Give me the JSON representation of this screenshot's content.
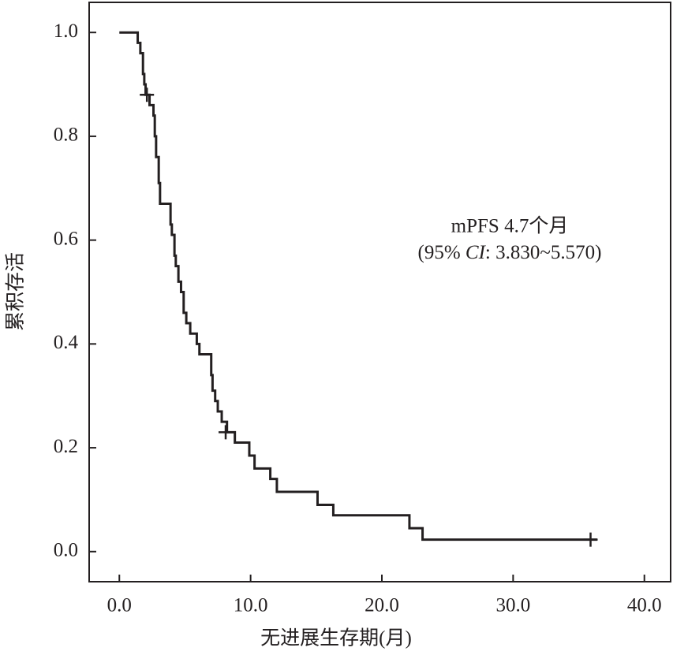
{
  "chart_data": {
    "type": "step",
    "xlabel": "无进展生存期(月)",
    "ylabel": "累积存活",
    "annotation": [
      "mPFS 4.7个月",
      [
        "(95% ",
        "CI",
        ": 3.830~5.570)"
      ]
    ],
    "xlim": [
      -2.3,
      42.0
    ],
    "ylim": [
      -0.058,
      1.058
    ],
    "xticks": [
      {
        "value": 0,
        "label": "0.0"
      },
      {
        "value": 10,
        "label": "10.0"
      },
      {
        "value": 20,
        "label": "20.0"
      },
      {
        "value": 30,
        "label": "30.0"
      },
      {
        "value": 40,
        "label": "40.0"
      }
    ],
    "yticks": [
      {
        "value": 0,
        "label": "0.0"
      },
      0.2,
      0.4,
      0.6,
      0.8,
      {
        "value": 1,
        "label": "1.0"
      }
    ],
    "color": "#231f20",
    "series": [
      {
        "x": [
          0,
          1.4,
          1.6,
          1.8,
          1.9,
          2.0,
          2.3,
          2.6,
          2.7,
          2.8,
          3.0,
          3.1,
          3.9,
          4.0,
          4.2,
          4.3,
          4.5,
          4.7,
          4.9,
          5.1,
          5.4,
          5.9,
          6.1,
          7.0,
          7.1,
          7.3,
          7.5,
          7.8,
          8.2,
          8.8,
          9.9,
          10.3,
          11.5,
          12.0,
          15.1,
          16.3,
          22.1,
          23.1,
          36.4
        ],
        "values": [
          1.0,
          0.98,
          0.96,
          0.92,
          0.9,
          0.88,
          0.86,
          0.84,
          0.8,
          0.76,
          0.71,
          0.67,
          0.63,
          0.61,
          0.57,
          0.55,
          0.52,
          0.5,
          0.46,
          0.44,
          0.42,
          0.4,
          0.38,
          0.34,
          0.31,
          0.29,
          0.27,
          0.25,
          0.23,
          0.21,
          0.185,
          0.16,
          0.14,
          0.115,
          0.09,
          0.07,
          0.045,
          0.023,
          0.023
        ]
      }
    ],
    "censored": {
      "x": [
        2.1,
        8.1,
        35.9
      ],
      "values": [
        0.88,
        0.23,
        0.023
      ]
    }
  }
}
